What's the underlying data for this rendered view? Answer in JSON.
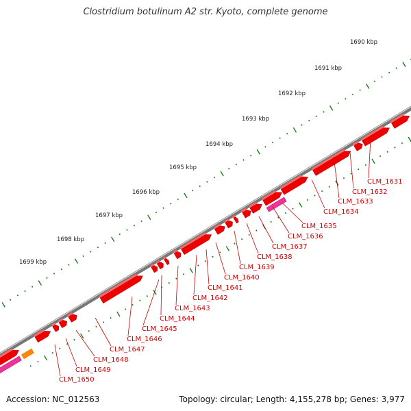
{
  "title": "Clostridium botulinum A2 str. Kyoto, complete genome",
  "accession_label": "Accession: NC_012563",
  "summary": "Topology: circular; Length: 4,155,278 bp; Genes: 3,977",
  "colors": {
    "backbone": "#777777",
    "backbone_highlight": "#dddddd",
    "gene": "#ee0000",
    "gene_dark": "#aa0000",
    "pink_gene": "#ee3399",
    "orange_gene": "#ff8800",
    "tick_green": "#1a7a1a",
    "label_red": "#cc0000"
  },
  "kbp_labels": [
    "1690 kbp",
    "1691 kbp",
    "1692 kbp",
    "1693 kbp",
    "1694 kbp",
    "1695 kbp",
    "1696 kbp",
    "1697 kbp",
    "1698 kbp",
    "1699 kbp"
  ],
  "gene_labels": [
    "CLM_1631",
    "CLM_1632",
    "CLM_1633",
    "CLM_1634",
    "CLM_1635",
    "CLM_1636",
    "CLM_1637",
    "CLM_1638",
    "CLM_1639",
    "CLM_1640",
    "CLM_1641",
    "CLM_1642",
    "CLM_1643",
    "CLM_1644",
    "CLM_1645",
    "CLM_1646",
    "CLM_1647",
    "CLM_1648",
    "CLM_1649",
    "CLM_1650"
  ]
}
